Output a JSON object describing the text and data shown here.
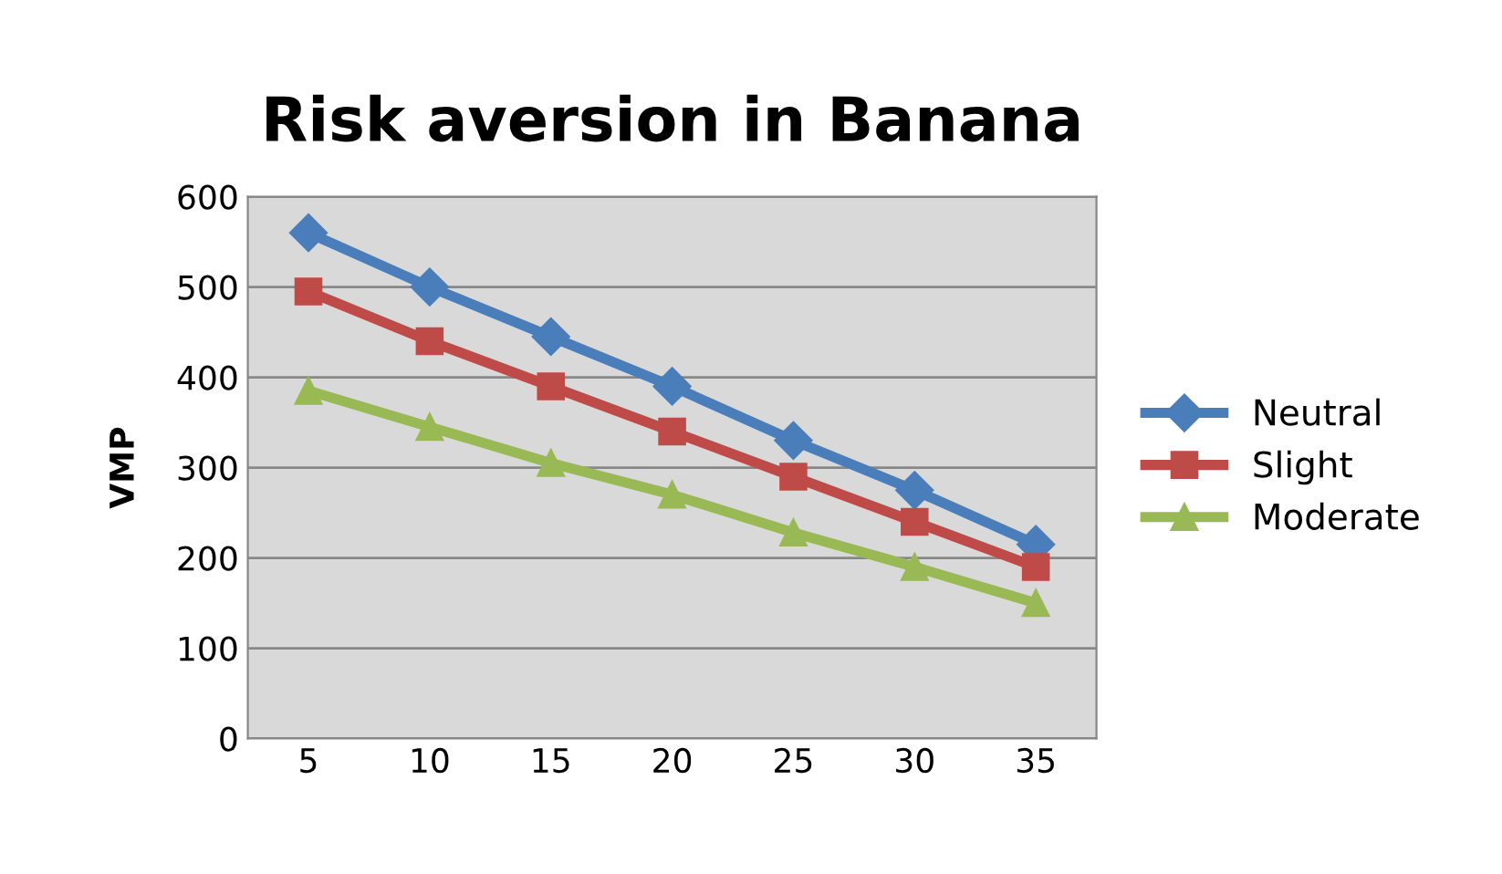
{
  "chart_data": {
    "type": "line",
    "title": "Risk aversion in Banana",
    "ylabel": "VMP",
    "categories": [
      "5",
      "10",
      "15",
      "20",
      "25",
      "30",
      "35"
    ],
    "series": [
      {
        "name": "Neutral",
        "color": "#4a7ebb",
        "marker": "diamond",
        "values": [
          560,
          500,
          445,
          390,
          330,
          275,
          215
        ]
      },
      {
        "name": "Slight",
        "color": "#be4b48",
        "marker": "square",
        "values": [
          495,
          440,
          390,
          340,
          290,
          240,
          190
        ]
      },
      {
        "name": "Moderate",
        "color": "#98b954",
        "marker": "triangle",
        "values": [
          385,
          345,
          305,
          270,
          228,
          190,
          150
        ]
      }
    ],
    "ylim": [
      0,
      600
    ],
    "yticks": [
      0,
      100,
      200,
      300,
      400,
      500,
      600
    ],
    "grid": "y",
    "legend": "right",
    "line_style": "solid"
  }
}
